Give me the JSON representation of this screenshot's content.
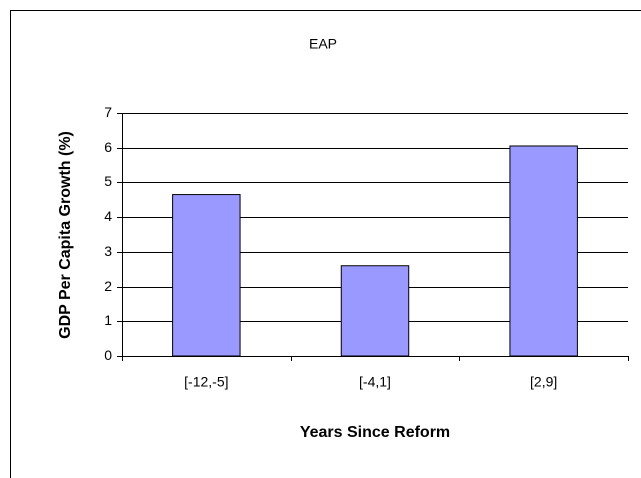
{
  "chart_data": {
    "type": "bar",
    "title": "EAP",
    "y_label": "GDP Per Capita Growth (%)",
    "x_label": "Years Since Reform",
    "categories": [
      "[-12,-5]",
      "[-4,1]",
      "[2,9]"
    ],
    "values": [
      4.65,
      2.6,
      6.05
    ],
    "color": "#9999ff",
    "ylim": [
      0,
      7
    ],
    "yticks": [
      0,
      1,
      2,
      3,
      4,
      5,
      6,
      7
    ],
    "grid": true
  }
}
